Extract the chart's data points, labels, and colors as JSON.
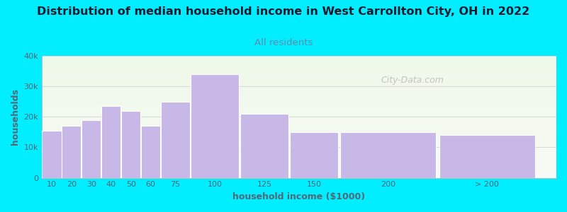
{
  "title": "Distribution of median household income in West Carrollton City, OH in 2022",
  "subtitle": "All residents",
  "xlabel": "household income ($1000)",
  "ylabel": "households",
  "bar_labels": [
    "10",
    "20",
    "30",
    "40",
    "50",
    "60",
    "75",
    "100",
    "125",
    "150",
    "200",
    "> 200"
  ],
  "bar_values": [
    15500,
    17000,
    19000,
    23500,
    22000,
    17000,
    25000,
    34000,
    21000,
    15000,
    15000,
    14000
  ],
  "bar_color": "#c8b8e8",
  "bar_edgecolor": "#ffffff",
  "background_color": "#00eeff",
  "plot_bg_top": "#eef8e8",
  "plot_bg_bottom": "#f8fbf5",
  "title_color": "#1a1a2e",
  "subtitle_color": "#6688aa",
  "axis_label_color": "#556677",
  "tick_color": "#556677",
  "ylim": [
    0,
    40000
  ],
  "yticks": [
    0,
    10000,
    20000,
    30000,
    40000
  ],
  "ytick_labels": [
    "0",
    "10k",
    "20k",
    "30k",
    "40k"
  ],
  "watermark": "City-Data.com",
  "title_fontsize": 11.5,
  "subtitle_fontsize": 9.5,
  "label_fontsize": 9,
  "tick_fontsize": 8,
  "left_edges": [
    0,
    10,
    20,
    30,
    40,
    50,
    60,
    75,
    100,
    125,
    150,
    200
  ],
  "widths": [
    10,
    10,
    10,
    10,
    10,
    10,
    15,
    25,
    25,
    25,
    50,
    50
  ],
  "xlim_max": 260
}
